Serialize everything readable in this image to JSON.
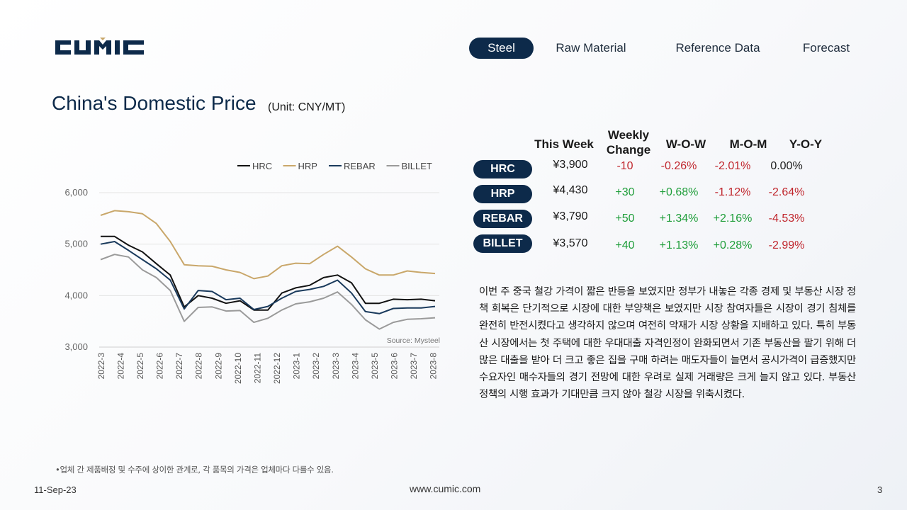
{
  "brand": {
    "logo_text": "CUMIC",
    "logo_color": "#0d2a4a"
  },
  "nav": {
    "tabs": [
      {
        "label": "Steel",
        "active": true
      },
      {
        "label": "Raw Material",
        "active": false
      },
      {
        "label": "Reference Data",
        "active": false
      },
      {
        "label": "Forecast",
        "active": false
      }
    ]
  },
  "page": {
    "title": "China's Domestic Price",
    "unit": "(Unit: CNY/MT)"
  },
  "chart_data": {
    "type": "line",
    "legend_position": "top-right",
    "ylim": [
      3000,
      6000
    ],
    "yticks": [
      "3,000",
      "4,000",
      "5,000",
      "6,000"
    ],
    "yticks_values": [
      3000,
      4000,
      5000,
      6000
    ],
    "x_labels": [
      "2022-3",
      "2022-4",
      "2022-5",
      "2022-6",
      "2022-7",
      "2022-8",
      "2022-9",
      "2022-10",
      "2022-11",
      "2022-12",
      "2023-1",
      "2023-2",
      "2023-3",
      "2023-4",
      "2023-5",
      "2023-6",
      "2023-7",
      "2023-8"
    ],
    "source": "Source: Mysteel",
    "grid": "horizontal",
    "series": [
      {
        "name": "HRC",
        "color": "#111111",
        "values": [
          5150,
          5150,
          4980,
          4850,
          4620,
          4400,
          3780,
          4000,
          3950,
          3850,
          3900,
          3720,
          3720,
          4050,
          4150,
          4200,
          4350,
          4400,
          4250,
          3850,
          3850,
          3930,
          3920,
          3930,
          3900
        ]
      },
      {
        "name": "HRP",
        "color": "#c9a76a",
        "values": [
          5560,
          5650,
          5630,
          5590,
          5400,
          5050,
          4600,
          4580,
          4570,
          4500,
          4450,
          4330,
          4380,
          4580,
          4630,
          4620,
          4800,
          4960,
          4750,
          4520,
          4400,
          4400,
          4480,
          4450,
          4430
        ]
      },
      {
        "name": "REBAR",
        "color": "#1a3a5c",
        "values": [
          5000,
          5050,
          4880,
          4700,
          4520,
          4300,
          3740,
          4100,
          4080,
          3920,
          3950,
          3730,
          3790,
          3950,
          4080,
          4120,
          4180,
          4300,
          4050,
          3690,
          3650,
          3750,
          3760,
          3760,
          3790
        ]
      },
      {
        "name": "BILLET",
        "color": "#9a9a9a",
        "values": [
          4700,
          4800,
          4750,
          4500,
          4350,
          4100,
          3500,
          3770,
          3780,
          3700,
          3710,
          3480,
          3560,
          3720,
          3840,
          3880,
          3950,
          4070,
          3830,
          3530,
          3350,
          3480,
          3540,
          3550,
          3570
        ]
      }
    ]
  },
  "table": {
    "headers": {
      "this_week": "This Week",
      "weekly_change": "Weekly Change",
      "wow": "W-O-W",
      "mom": "M-O-M",
      "yoy": "Y-O-Y"
    },
    "rows": [
      {
        "product": "HRC",
        "price": "¥3,900",
        "change": "-10",
        "wow": "-0.26%",
        "mom": "-2.01%",
        "yoy": "0.00%"
      },
      {
        "product": "HRP",
        "price": "¥4,430",
        "change": "+30",
        "wow": "+0.68%",
        "mom": "-1.12%",
        "yoy": "-2.64%"
      },
      {
        "product": "REBAR",
        "price": "¥3,790",
        "change": "+50",
        "wow": "+1.34%",
        "mom": "+2.16%",
        "yoy": "-4.53%"
      },
      {
        "product": "BILLET",
        "price": "¥3,570",
        "change": "+40",
        "wow": "+1.13%",
        "mom": "+0.28%",
        "yoy": "-2.99%"
      }
    ]
  },
  "commentary": "이번 주 중국 철강 가격이 짧은 반등을 보였지만 정부가 내놓은 각종 경제 및 부동산 시장 정책 회복은 단기적으로 시장에 대한 부양책은 보였지만 시장 참여자들은 시장이 경기 침체를 완전히 반전시켰다고 생각하지 않으며 여전히 악재가 시장 상황을 지배하고 있다. 특히 부동산 시장에서는 첫 주택에 대한 우대대출 자격인정이 완화되면서 기존 부동산을 팔기 위해 더 많은 대출을 받아 더 크고 좋은 집을 구매 하려는 매도자들이 늘면서 공시가격이 급증했지만 수요자인 매수자들의 경기 전망에 대한 우려로 실제 거래량은 크게 늘지 않고 있다. 부동산 정책의 시행 효과가 기대만큼 크지 않아 철강 시장을 위축시켰다.",
  "footnote": "•업체 간 제품배정 및 수주에 상이한 관계로, 각 품목의 가격은 업체마다 다를수 있음.",
  "footer": {
    "date": "11-Sep-23",
    "url": "www.cumic.com",
    "page": "3"
  },
  "colors": {
    "positive": "#1f9e3a",
    "negative": "#c0262d",
    "navy": "#0d2a4a"
  }
}
